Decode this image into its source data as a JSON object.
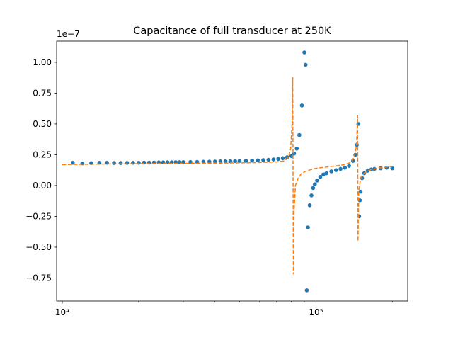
{
  "chart_data": {
    "type": "scatter",
    "title": "Capacitance of full transducer at 250K",
    "y_offset_label": "1e−7",
    "xscale": "log",
    "xlim": [
      9500,
      230000
    ],
    "xticks": [
      {
        "value": 10000,
        "label": "10⁴"
      },
      {
        "value": 100000,
        "label": "10⁵"
      }
    ],
    "xminorticks": [
      20000,
      30000,
      40000,
      50000,
      60000,
      70000,
      80000,
      90000,
      200000
    ],
    "ylim": [
      -0.937,
      1.172
    ],
    "yticks": [
      {
        "value": -0.75,
        "label": "−0.75"
      },
      {
        "value": -0.5,
        "label": "−0.50"
      },
      {
        "value": -0.25,
        "label": "−0.25"
      },
      {
        "value": 0,
        "label": "0.00"
      },
      {
        "value": 0.25,
        "label": "0.25"
      },
      {
        "value": 0.5,
        "label": "0.50"
      },
      {
        "value": 0.75,
        "label": "0.75"
      },
      {
        "value": 1,
        "label": "1.00"
      }
    ],
    "series": [
      {
        "style": "markers",
        "color": "#1f77b4",
        "x": [
          11000,
          12000,
          13000,
          14000,
          15000,
          16000,
          17000,
          18000,
          19000,
          20000,
          21000,
          22000,
          23000,
          24000,
          25000,
          26000,
          27000,
          28000,
          29000,
          30000,
          32000,
          34000,
          36000,
          38000,
          40000,
          42000,
          44000,
          46000,
          48000,
          50000,
          53000,
          56000,
          59000,
          62000,
          65000,
          68000,
          71000,
          74000,
          77000,
          80000,
          82000,
          84000,
          86000,
          88000,
          90000,
          91000,
          92000,
          93000,
          94500,
          96000,
          97500,
          99000,
          101000,
          104000,
          107000,
          110000,
          115000,
          120000,
          125000,
          130000,
          135000,
          140000,
          143000,
          145000,
          147000,
          148000,
          149000,
          150000,
          152000,
          155000,
          160000,
          165000,
          170000,
          180000,
          190000,
          200000
        ],
        "values": [
          0.185,
          0.18,
          0.182,
          0.185,
          0.185,
          0.183,
          0.183,
          0.184,
          0.185,
          0.185,
          0.186,
          0.186,
          0.187,
          0.188,
          0.188,
          0.189,
          0.189,
          0.19,
          0.19,
          0.19,
          0.191,
          0.192,
          0.193,
          0.194,
          0.195,
          0.196,
          0.197,
          0.198,
          0.199,
          0.2,
          0.201,
          0.203,
          0.205,
          0.207,
          0.209,
          0.212,
          0.216,
          0.222,
          0.23,
          0.24,
          0.26,
          0.3,
          0.41,
          0.65,
          1.08,
          0.98,
          -0.85,
          -0.34,
          -0.16,
          -0.08,
          -0.02,
          0.01,
          0.04,
          0.07,
          0.09,
          0.1,
          0.115,
          0.125,
          0.135,
          0.145,
          0.16,
          0.2,
          0.25,
          0.33,
          0.5,
          -0.25,
          -0.12,
          -0.05,
          0.06,
          0.1,
          0.12,
          0.13,
          0.135,
          0.14,
          0.145,
          0.14
        ]
      },
      {
        "style": "dashed",
        "color": "#ff7f0e",
        "x": [
          10000,
          15000,
          20000,
          30000,
          40000,
          50000,
          60000,
          70000,
          75000,
          78000,
          79500,
          80500,
          81000,
          81500,
          82000,
          83000,
          85000,
          88000,
          92000,
          100000,
          110000,
          120000,
          130000,
          138000,
          142000,
          144500,
          146000,
          146500,
          147500,
          150000,
          155000,
          165000,
          180000,
          200000
        ],
        "values": [
          0.17,
          0.175,
          0.178,
          0.18,
          0.182,
          0.184,
          0.187,
          0.192,
          0.2,
          0.23,
          0.3,
          0.5,
          0.88,
          -0.72,
          -0.2,
          0.0,
          0.06,
          0.1,
          0.12,
          0.14,
          0.15,
          0.16,
          0.17,
          0.19,
          0.24,
          0.32,
          0.57,
          -0.45,
          -0.05,
          0.06,
          0.1,
          0.13,
          0.145,
          0.155
        ]
      }
    ]
  }
}
